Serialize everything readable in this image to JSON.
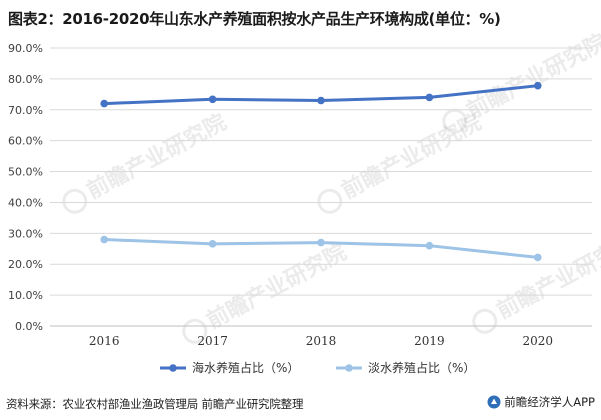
{
  "chart_data": {
    "type": "line",
    "title": "图表2：2016-2020年山东水产养殖面积按水产品生产环境构成(单位：%)",
    "categories": [
      "2016",
      "2017",
      "2018",
      "2019",
      "2020"
    ],
    "series": [
      {
        "name": "海水养殖占比（%）",
        "values": [
          72.0,
          73.4,
          73.0,
          74.0,
          77.8
        ],
        "color": "#4472c4"
      },
      {
        "name": "淡水养殖占比（%）",
        "values": [
          28.0,
          26.6,
          27.0,
          26.0,
          22.2
        ],
        "color": "#9dc3e6"
      }
    ],
    "ylim": [
      0,
      90
    ],
    "yticks": [
      "0.0%",
      "10.0%",
      "20.0%",
      "30.0%",
      "40.0%",
      "50.0%",
      "60.0%",
      "70.0%",
      "80.0%",
      "90.0%"
    ],
    "grid": true,
    "legend": "bottom"
  },
  "source": "资料来源：农业农村部渔业渔政管理局 前瞻产业研究院整理",
  "brand": "前瞻经济学人APP",
  "watermark": {
    "text": "前瞻产业研究院"
  }
}
